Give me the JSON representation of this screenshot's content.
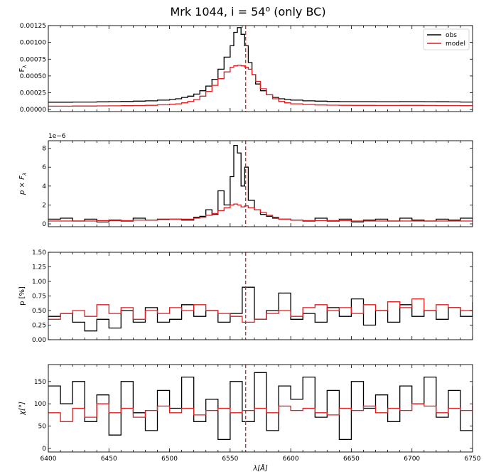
{
  "figure": {
    "title": "Mrk 1044, i = 54",
    "title_sup": "o",
    "title_suffix": " (only BC)"
  },
  "colors": {
    "obs": "#000000",
    "model": "#e41a1c",
    "marker_line": "#d62020"
  },
  "chart_data": [
    {
      "type": "line",
      "panel": "flux",
      "ylabel": "F",
      "ylabel_sub": "λ",
      "xlim": [
        6400,
        6750
      ],
      "ylim": [
        -3e-05,
        0.00125
      ],
      "yticks": [
        "0.00000",
        "0.00025",
        "0.00050",
        "0.00075",
        "0.00100",
        "0.00125"
      ],
      "ytick_values": [
        0,
        0.00025,
        0.0005,
        0.00075,
        0.001,
        0.00125
      ],
      "reference_x": 6562.8,
      "legend": {
        "position": "top-right",
        "entries": [
          "obs",
          "model"
        ]
      },
      "x": [
        6400,
        6410,
        6420,
        6430,
        6440,
        6450,
        6460,
        6470,
        6480,
        6490,
        6500,
        6505,
        6510,
        6515,
        6520,
        6525,
        6530,
        6535,
        6540,
        6545,
        6550,
        6553,
        6556,
        6559,
        6562,
        6565,
        6568,
        6571,
        6575,
        6580,
        6585,
        6590,
        6595,
        6600,
        6610,
        6620,
        6630,
        6640,
        6650,
        6660,
        6670,
        6680,
        6690,
        6700,
        6710,
        6720,
        6730,
        6740,
        6750
      ],
      "series": [
        {
          "name": "obs",
          "values": [
            0.00011,
            0.00011,
            0.000112,
            0.000112,
            0.000115,
            0.000118,
            0.00012,
            0.000125,
            0.00013,
            0.00014,
            0.00015,
            0.00016,
            0.00018,
            0.0002,
            0.00023,
            0.00028,
            0.00035,
            0.00045,
            0.0006,
            0.00078,
            0.00095,
            0.00115,
            0.00122,
            0.00112,
            0.00095,
            0.0007,
            0.00052,
            0.00038,
            0.00028,
            0.00022,
            0.00018,
            0.00016,
            0.00015,
            0.00014,
            0.00013,
            0.000125,
            0.00012,
            0.000118,
            0.000118,
            0.000118,
            0.000117,
            0.000117,
            0.000118,
            0.000118,
            0.000117,
            0.000116,
            0.000114,
            0.000112,
            0.00011
          ]
        },
        {
          "name": "model",
          "values": [
            5e-05,
            5e-05,
            5.2e-05,
            5.2e-05,
            5.5e-05,
            5.6e-05,
            5.8e-05,
            6e-05,
            6.3e-05,
            7e-05,
            8e-05,
            8.5e-05,
            0.0001,
            0.00012,
            0.00015,
            0.0002,
            0.00027,
            0.00036,
            0.00046,
            0.00056,
            0.00063,
            0.00065,
            0.00066,
            0.00065,
            0.00063,
            0.0006,
            0.00052,
            0.00042,
            0.00031,
            0.00022,
            0.00016,
            0.00012,
            0.0001,
            8.5e-05,
            7.5e-05,
            6.8e-05,
            6.5e-05,
            6.3e-05,
            6.2e-05,
            6.2e-05,
            6.1e-05,
            6.1e-05,
            6.2e-05,
            6.2e-05,
            6.1e-05,
            6e-05,
            6e-05,
            5.8e-05,
            5.5e-05
          ]
        }
      ]
    },
    {
      "type": "line",
      "panel": "polarized_flux",
      "ylabel": "p × F",
      "ylabel_sub": "λ",
      "offset_text": "1e−6",
      "xlim": [
        6400,
        6750
      ],
      "ylim": [
        -0.3,
        8.8
      ],
      "yticks": [
        "0",
        "2",
        "4",
        "6",
        "8"
      ],
      "ytick_values": [
        0,
        2,
        4,
        6,
        8
      ],
      "reference_x": 6562.8,
      "x": [
        6400,
        6410,
        6420,
        6430,
        6440,
        6450,
        6460,
        6470,
        6480,
        6490,
        6500,
        6510,
        6520,
        6525,
        6530,
        6535,
        6540,
        6545,
        6550,
        6553,
        6556,
        6559,
        6562,
        6565,
        6570,
        6575,
        6580,
        6585,
        6590,
        6600,
        6610,
        6620,
        6630,
        6640,
        6650,
        6660,
        6670,
        6680,
        6690,
        6700,
        6710,
        6720,
        6730,
        6740,
        6750
      ],
      "series": [
        {
          "name": "obs",
          "values": [
            0.5,
            0.6,
            0.3,
            0.5,
            0.2,
            0.4,
            0.3,
            0.6,
            0.4,
            0.5,
            0.5,
            0.4,
            0.7,
            0.8,
            1.5,
            1.0,
            3.5,
            2.0,
            5.0,
            8.3,
            7.5,
            4.0,
            6.0,
            2.5,
            1.5,
            1.0,
            0.8,
            0.6,
            0.5,
            0.4,
            0.3,
            0.6,
            0.3,
            0.5,
            0.2,
            0.4,
            0.5,
            0.3,
            0.6,
            0.4,
            0.3,
            0.5,
            0.4,
            0.6,
            0.5
          ]
        },
        {
          "name": "model",
          "values": [
            0.3,
            0.3,
            0.3,
            0.3,
            0.35,
            0.35,
            0.35,
            0.4,
            0.4,
            0.45,
            0.5,
            0.5,
            0.6,
            0.7,
            0.9,
            1.1,
            1.4,
            1.7,
            2.0,
            2.1,
            2.0,
            1.8,
            1.9,
            1.7,
            1.5,
            1.2,
            0.9,
            0.7,
            0.5,
            0.4,
            0.35,
            0.35,
            0.35,
            0.35,
            0.3,
            0.3,
            0.3,
            0.3,
            0.3,
            0.3,
            0.3,
            0.3,
            0.3,
            0.3,
            0.3
          ]
        }
      ]
    },
    {
      "type": "line",
      "panel": "polarization_degree",
      "ylabel": "p [%]",
      "xlim": [
        6400,
        6750
      ],
      "ylim": [
        0,
        1.5
      ],
      "yticks": [
        "0.00",
        "0.25",
        "0.50",
        "0.75",
        "1.00",
        "1.25",
        "1.50"
      ],
      "ytick_values": [
        0,
        0.25,
        0.5,
        0.75,
        1.0,
        1.25,
        1.5
      ],
      "reference_x": 6562.8,
      "x": [
        6400,
        6410,
        6420,
        6430,
        6440,
        6450,
        6460,
        6470,
        6480,
        6490,
        6500,
        6510,
        6520,
        6530,
        6540,
        6550,
        6560,
        6570,
        6580,
        6590,
        6600,
        6610,
        6620,
        6630,
        6640,
        6650,
        6660,
        6670,
        6680,
        6690,
        6700,
        6710,
        6720,
        6730,
        6740,
        6750
      ],
      "series": [
        {
          "name": "obs",
          "values": [
            0.4,
            0.45,
            0.3,
            0.15,
            0.35,
            0.2,
            0.5,
            0.3,
            0.55,
            0.3,
            0.35,
            0.6,
            0.4,
            0.5,
            0.3,
            0.45,
            0.9,
            0.35,
            0.5,
            0.8,
            0.35,
            0.45,
            0.3,
            0.55,
            0.4,
            0.7,
            0.25,
            0.5,
            0.3,
            0.6,
            0.4,
            0.5,
            0.35,
            0.55,
            0.4,
            0.65
          ]
        },
        {
          "name": "model",
          "values": [
            0.35,
            0.45,
            0.5,
            0.4,
            0.6,
            0.45,
            0.55,
            0.35,
            0.5,
            0.45,
            0.55,
            0.5,
            0.6,
            0.5,
            0.45,
            0.4,
            0.3,
            0.35,
            0.45,
            0.5,
            0.4,
            0.55,
            0.6,
            0.5,
            0.55,
            0.45,
            0.6,
            0.5,
            0.65,
            0.55,
            0.7,
            0.5,
            0.6,
            0.55,
            0.5,
            0.45
          ]
        }
      ]
    },
    {
      "type": "line",
      "panel": "polarization_angle",
      "ylabel": "χ[°]",
      "xlabel": "λ[Å]",
      "xlim": [
        6400,
        6750
      ],
      "ylim": [
        -8,
        188
      ],
      "yticks": [
        "0",
        "50",
        "100",
        "150"
      ],
      "ytick_values": [
        0,
        50,
        100,
        150
      ],
      "xticks": [
        "6400",
        "6450",
        "6500",
        "6550",
        "6600",
        "6650",
        "6700",
        "6750"
      ],
      "xtick_values": [
        6400,
        6450,
        6500,
        6550,
        6600,
        6650,
        6700,
        6750
      ],
      "reference_x": 6562.8,
      "x": [
        6400,
        6410,
        6420,
        6430,
        6440,
        6450,
        6460,
        6470,
        6480,
        6490,
        6500,
        6510,
        6520,
        6530,
        6540,
        6550,
        6560,
        6570,
        6580,
        6590,
        6600,
        6610,
        6620,
        6630,
        6640,
        6650,
        6660,
        6670,
        6680,
        6690,
        6700,
        6710,
        6720,
        6730,
        6740,
        6750
      ],
      "series": [
        {
          "name": "obs",
          "values": [
            140,
            100,
            150,
            60,
            120,
            30,
            150,
            80,
            40,
            130,
            90,
            160,
            60,
            110,
            20,
            150,
            60,
            170,
            40,
            140,
            110,
            160,
            70,
            130,
            20,
            150,
            90,
            120,
            60,
            140,
            100,
            160,
            70,
            130,
            40,
            140
          ]
        },
        {
          "name": "model",
          "values": [
            80,
            60,
            90,
            70,
            100,
            80,
            90,
            70,
            85,
            95,
            80,
            90,
            75,
            85,
            90,
            80,
            85,
            90,
            80,
            95,
            85,
            90,
            80,
            75,
            90,
            85,
            95,
            80,
            90,
            85,
            100,
            95,
            80,
            90,
            85,
            95
          ]
        }
      ]
    }
  ]
}
